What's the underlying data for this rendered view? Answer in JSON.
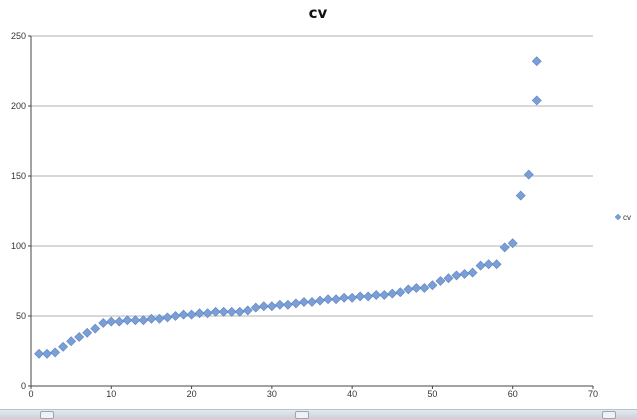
{
  "chart_data": {
    "type": "scatter",
    "title": "cv",
    "xlabel": "",
    "ylabel": "",
    "xlim": [
      0,
      70
    ],
    "ylim": [
      0,
      250
    ],
    "xticks": [
      0,
      10,
      20,
      30,
      40,
      50,
      60,
      70
    ],
    "yticks": [
      0,
      50,
      100,
      150,
      200,
      250
    ],
    "grid": "horizontal",
    "legend_position": "right",
    "series": [
      {
        "name": "cv",
        "color": "#7a9fd8",
        "marker": "diamond",
        "x": [
          1,
          2,
          3,
          4,
          5,
          6,
          7,
          8,
          9,
          10,
          11,
          12,
          13,
          14,
          15,
          16,
          17,
          18,
          19,
          20,
          21,
          22,
          23,
          24,
          25,
          26,
          27,
          28,
          29,
          30,
          31,
          32,
          33,
          34,
          35,
          36,
          37,
          38,
          39,
          40,
          41,
          42,
          43,
          44,
          45,
          46,
          47,
          48,
          49,
          50,
          51,
          52,
          53,
          54,
          55,
          56,
          57,
          58,
          59,
          60,
          61,
          62,
          63
        ],
        "y": [
          23,
          23,
          24,
          28,
          32,
          35,
          38,
          41,
          45,
          46,
          46,
          47,
          47,
          47,
          48,
          48,
          49,
          50,
          51,
          51,
          52,
          52,
          53,
          53,
          53,
          53,
          54,
          56,
          57,
          57,
          58,
          58,
          59,
          60,
          60,
          61,
          62,
          62,
          63,
          63,
          64,
          64,
          65,
          65,
          66,
          67,
          69,
          70,
          70,
          72,
          75,
          77,
          79,
          80,
          81,
          86,
          87,
          87,
          99,
          102,
          136,
          151,
          204
        ]
      }
    ],
    "extra_point": {
      "x": 63,
      "y": 232
    }
  }
}
